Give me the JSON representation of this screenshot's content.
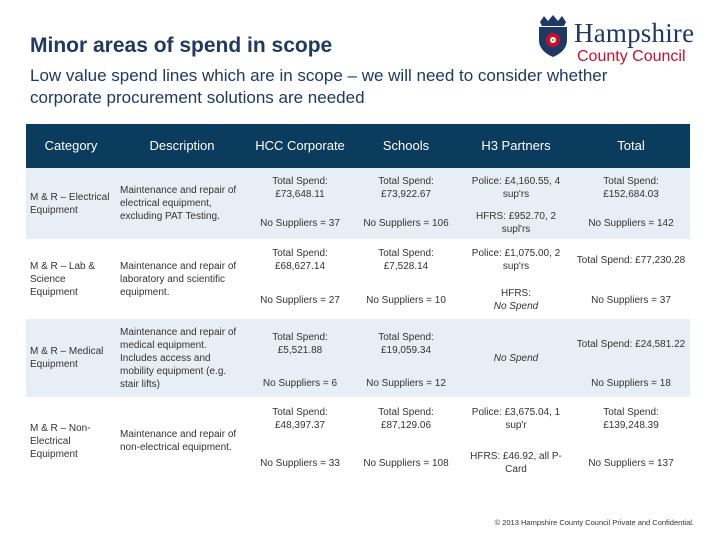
{
  "title": "Minor areas of spend in scope",
  "subtitle": "Low value spend lines which are in scope – we will need to consider whether corporate procurement solutions are needed",
  "logo": {
    "line1": "Hampshire",
    "line2": "County Council",
    "icon": "rose-crest-icon"
  },
  "colors": {
    "header_bg": "#0b3c5d",
    "title": "#1f3864",
    "band": "#e8eef6",
    "logo_red": "#c8102e"
  },
  "table": {
    "headers": [
      "Category",
      "Description",
      "HCC Corporate",
      "Schools",
      "H3 Partners",
      "Total"
    ],
    "rows": [
      {
        "category": "M & R – Electrical Equipment",
        "description": "Maintenance and repair of electrical equipment, excluding PAT Testing.",
        "hcc_spend": "Total Spend: £73,648.11",
        "schools_spend": "Total Spend: £73,922.67",
        "h3_top": "Police: £4,160.55, 4 sup'rs",
        "total_spend": "Total Spend: £152,684.03",
        "hcc_suppliers": "No Suppliers = 37",
        "schools_suppliers": "No Suppliers = 106",
        "h3_bottom": "HFRS: £952.70, 2 supl'rs",
        "total_suppliers": "No Suppliers = 142"
      },
      {
        "category": "M & R – Lab & Science Equipment",
        "description": "Maintenance and repair of laboratory and scientific equipment.",
        "hcc_spend": "Total Spend: £68,627.14",
        "schools_spend": "Total Spend: £7,528.14",
        "h3_top": "Police: £1,075.00, 2 sup'rs",
        "total_spend": "Total Spend: £77,230.28",
        "hcc_suppliers": "No Suppliers = 27",
        "schools_suppliers": "No Suppliers = 10",
        "h3_bottom_label": "HFRS:",
        "h3_bottom_value": "No Spend",
        "total_suppliers": "No Suppliers = 37"
      },
      {
        "category": "M & R – Medical Equipment",
        "description": "Maintenance and repair of medical equipment. Includes access and mobility equipment (e.g. stair lifts)",
        "hcc_spend": "Total Spend: £5,521.88",
        "schools_spend": "Total Spend: £19,059.34",
        "h3": "No Spend",
        "total_spend": "Total Spend: £24,581.22",
        "hcc_suppliers": "No Suppliers = 6",
        "schools_suppliers": "No Suppliers = 12",
        "total_suppliers": "No Suppliers = 18"
      },
      {
        "category": "M & R – Non-Electrical Equipment",
        "description": "Maintenance and repair of non-electrical equipment.",
        "hcc_spend": "Total Spend: £48,397.37",
        "schools_spend": "Total Spend: £87,129.06",
        "h3_top": "Police: £3,675.04, 1 sup'r",
        "total_spend": "Total Spend: £139,248.39",
        "hcc_suppliers": "No Suppliers = 33",
        "schools_suppliers": "No Suppliers = 108",
        "h3_bottom": "HFRS: £46.92, all P-Card",
        "total_suppliers": "No Suppliers = 137"
      }
    ]
  },
  "footer": "© 2013 Hampshire County Council Private and Confidential."
}
